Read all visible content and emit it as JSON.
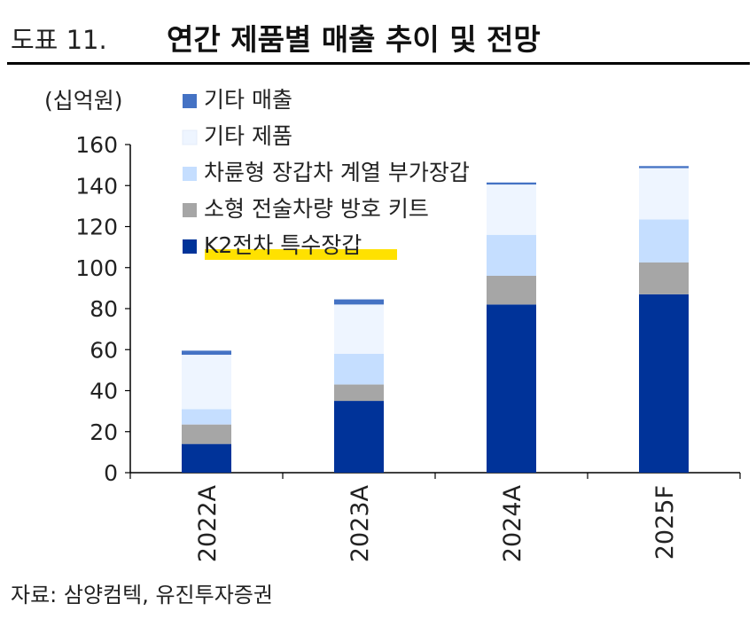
{
  "header": {
    "figure_number": "도표 11.",
    "title": "연간 제품별 매출 추이 및 전망"
  },
  "footer": {
    "source": "자료: 삼양컴텍, 유진투자증권"
  },
  "colors": {
    "k2": "#003399",
    "small": "#a6a6a6",
    "wheeled": "#c5deff",
    "other_product": "#eef5ff",
    "other_sales": "#4472c4",
    "highlight": "#ffe100"
  },
  "chart_data": {
    "type": "bar",
    "stacked": true,
    "unit_label": "(십억원)",
    "categories": [
      "2022A",
      "2023A",
      "2024A",
      "2025F"
    ],
    "ylim": [
      0,
      160
    ],
    "yticks": [
      0,
      20,
      40,
      60,
      80,
      100,
      120,
      140,
      160
    ],
    "grid": false,
    "legend_position": "top-left",
    "series": [
      {
        "name": "K2전차 특수장갑",
        "values": [
          14,
          35,
          82,
          87
        ],
        "color": "#003399",
        "highlighted": true
      },
      {
        "name": "소형 전술차량 방호 키트",
        "values": [
          9.5,
          8,
          14,
          15.5
        ],
        "color": "#a6a6a6"
      },
      {
        "name": "차륜형 장갑차 계열 부가장갑",
        "values": [
          7.5,
          15,
          20,
          21
        ],
        "color": "#c5deff"
      },
      {
        "name": "기타 제품",
        "values": [
          26.5,
          24,
          24.5,
          25
        ],
        "color": "#eef5ff"
      },
      {
        "name": "기타 매출",
        "values": [
          2,
          2.5,
          1,
          1
        ],
        "color": "#4472c4"
      }
    ]
  }
}
